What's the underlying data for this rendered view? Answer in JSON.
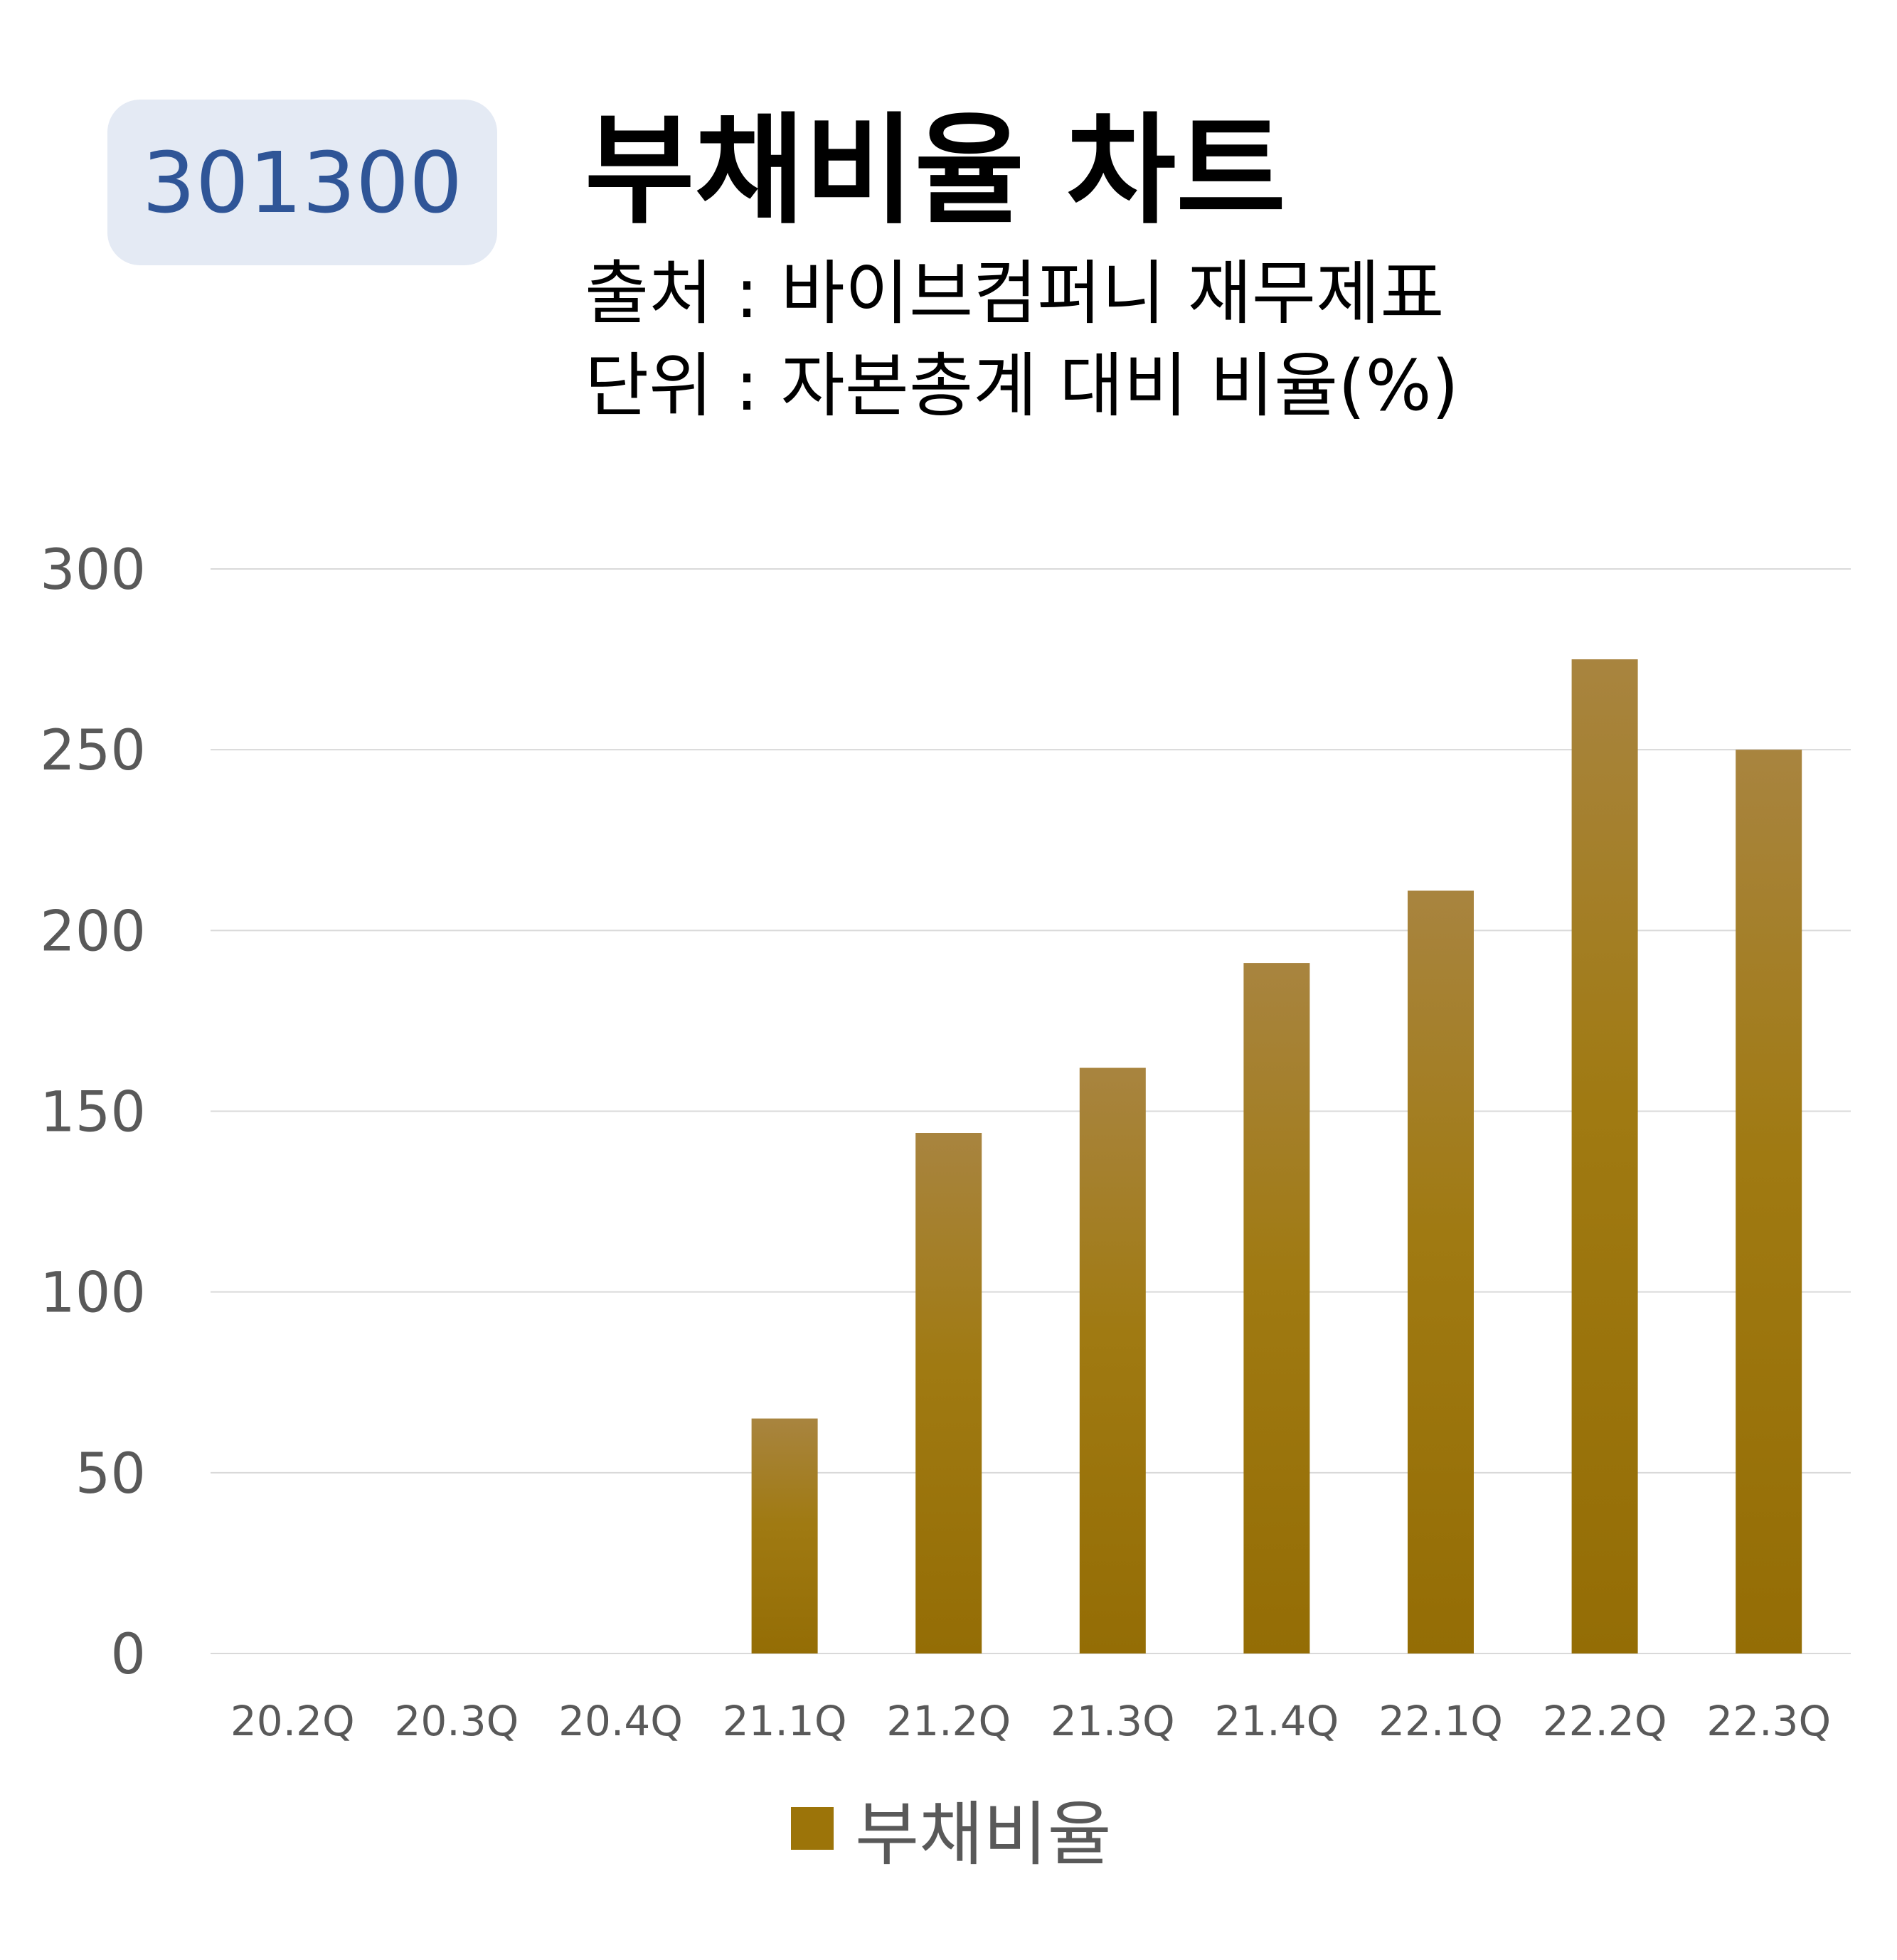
{
  "badge": {
    "code": "301300"
  },
  "header": {
    "title": "부채비율 차트",
    "source": "출처 : 바이브컴퍼니 재무제표",
    "unit": "단위 : 자본총계 대비 비율(%)"
  },
  "colors": {
    "bar": "#9c7409",
    "bar_top": "#a8843f",
    "grid": "#d9d9d9",
    "tick_text": "#595959",
    "badge_bg": "#e4eaf4",
    "badge_text": "#2f5597"
  },
  "chart_data": {
    "type": "bar",
    "categories": [
      "20.2Q",
      "20.3Q",
      "20.4Q",
      "21.1Q",
      "21.2Q",
      "21.3Q",
      "21.4Q",
      "22.1Q",
      "22.2Q",
      "22.3Q"
    ],
    "series": [
      {
        "name": "부채비율",
        "values": [
          null,
          null,
          null,
          65,
          144,
          162,
          191,
          211,
          275,
          250
        ]
      }
    ],
    "ylim": [
      0,
      300
    ],
    "yticks": [
      "0",
      "50",
      "100",
      "150",
      "200",
      "250",
      "300"
    ],
    "grid": true,
    "legend": "bottom"
  }
}
